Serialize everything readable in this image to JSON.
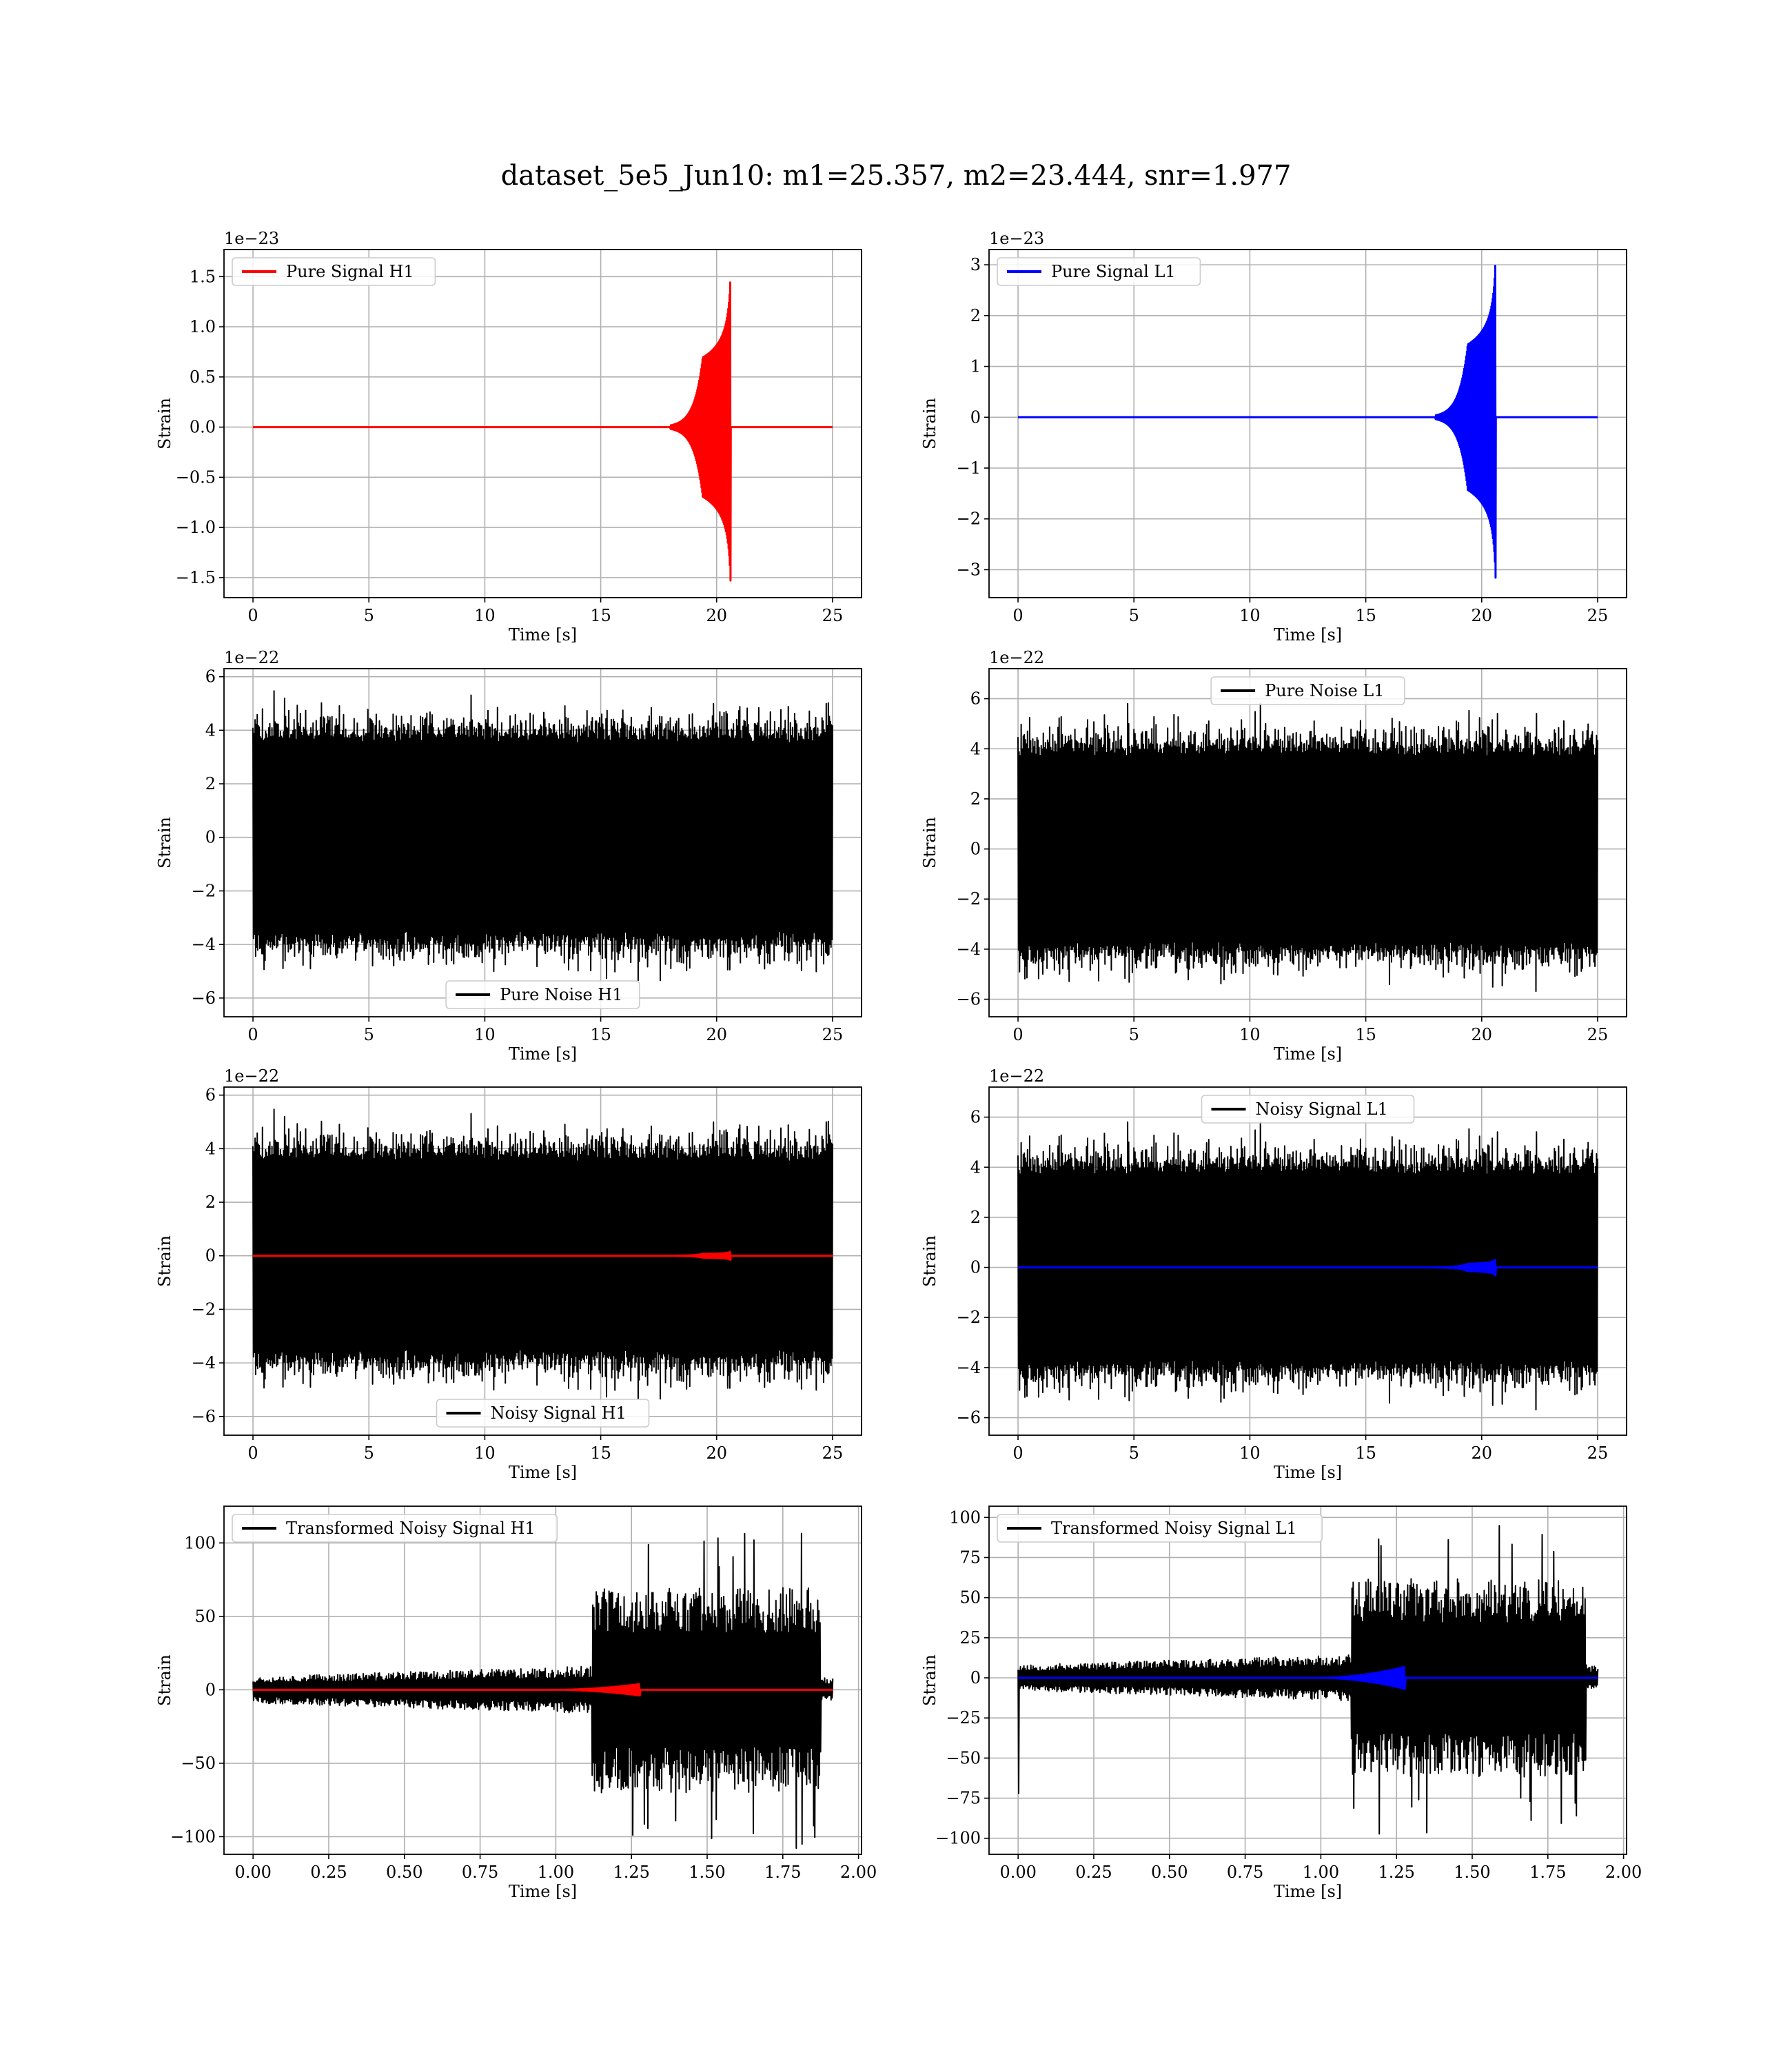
{
  "suptitle": "dataset_5e5_Jun10: m1=25.357, m2=23.444, snr=1.977",
  "colors": {
    "h1": "#ff0000",
    "l1": "#0000ff",
    "noise": "#000000",
    "grid": "#b0b0b0"
  },
  "chart_data": [
    {
      "id": "ax1",
      "type": "line",
      "xlabel": "Time [s]",
      "ylabel": "Strain",
      "offset_text": "1e−23",
      "xlim": [
        -1.25,
        26.25
      ],
      "ylim": [
        -1.7,
        1.77
      ],
      "xticks": [
        0,
        5,
        10,
        15,
        20,
        25
      ],
      "xtick_labels": [
        "0",
        "5",
        "10",
        "15",
        "20",
        "25"
      ],
      "yticks": [
        -1.5,
        -1.0,
        -0.5,
        0.0,
        0.5,
        1.0,
        1.5
      ],
      "ytick_labels": [
        "−1.5",
        "−1.0",
        "−0.5",
        "0.0",
        "0.5",
        "1.0",
        "1.5"
      ],
      "legend": {
        "label": "Pure Signal H1",
        "loc": "upper left"
      },
      "series": [
        {
          "name": "Pure Signal H1",
          "kind": "chirp",
          "color": "#ff0000",
          "t_start": 0,
          "t_end": 25,
          "t_merge": 20.6,
          "peak_pos": 1.6,
          "peak_neg": -1.5,
          "width": 3
        }
      ]
    },
    {
      "id": "ax2",
      "type": "line",
      "xlabel": "Time [s]",
      "ylabel": "Strain",
      "offset_text": "1e−23",
      "xlim": [
        -1.25,
        26.25
      ],
      "ylim": [
        -3.55,
        3.3
      ],
      "xticks": [
        0,
        5,
        10,
        15,
        20,
        25
      ],
      "xtick_labels": [
        "0",
        "5",
        "10",
        "15",
        "20",
        "25"
      ],
      "yticks": [
        -3,
        -2,
        -1,
        0,
        1,
        2,
        3
      ],
      "ytick_labels": [
        "−3",
        "−2",
        "−1",
        "0",
        "1",
        "2",
        "3"
      ],
      "legend": {
        "label": "Pure Signal L1",
        "loc": "upper left"
      },
      "series": [
        {
          "name": "Pure Signal L1",
          "kind": "chirp",
          "color": "#0000ff",
          "t_start": 0,
          "t_end": 25,
          "t_merge": 20.6,
          "peak_pos": 3.15,
          "peak_neg": -3.25,
          "width": 3
        }
      ]
    },
    {
      "id": "ax3",
      "type": "line",
      "xlabel": "Time [s]",
      "ylabel": "Strain",
      "offset_text": "1e−22",
      "xlim": [
        -1.25,
        26.25
      ],
      "ylim": [
        -6.7,
        6.3
      ],
      "xticks": [
        0,
        5,
        10,
        15,
        20,
        25
      ],
      "xtick_labels": [
        "0",
        "5",
        "10",
        "15",
        "20",
        "25"
      ],
      "yticks": [
        -6,
        -4,
        -2,
        0,
        2,
        4,
        6
      ],
      "ytick_labels": [
        "−6",
        "−4",
        "−2",
        "0",
        "2",
        "4",
        "6"
      ],
      "legend": {
        "label": "Pure Noise H1",
        "loc": "lower center"
      },
      "series": [
        {
          "name": "Pure Noise H1",
          "kind": "noise",
          "color": "#000000",
          "t_start": 0,
          "t_end": 25,
          "core": 3.8,
          "peak": 6.0,
          "seed": 11,
          "width": 2
        }
      ]
    },
    {
      "id": "ax4",
      "type": "line",
      "xlabel": "Time [s]",
      "ylabel": "Strain",
      "offset_text": "1e−22",
      "xlim": [
        -1.25,
        26.25
      ],
      "ylim": [
        -6.7,
        7.2
      ],
      "xticks": [
        0,
        5,
        10,
        15,
        20,
        25
      ],
      "xtick_labels": [
        "0",
        "5",
        "10",
        "15",
        "20",
        "25"
      ],
      "yticks": [
        -6,
        -4,
        -2,
        0,
        2,
        4,
        6
      ],
      "ytick_labels": [
        "−6",
        "−4",
        "−2",
        "0",
        "2",
        "4",
        "6"
      ],
      "legend": {
        "label": "Pure Noise L1",
        "loc": "upper center"
      },
      "series": [
        {
          "name": "Pure Noise L1",
          "kind": "noise",
          "color": "#000000",
          "t_start": 0,
          "t_end": 25,
          "core": 4.0,
          "peak": 6.2,
          "seed": 23,
          "width": 2
        }
      ]
    },
    {
      "id": "ax5",
      "type": "line",
      "xlabel": "Time [s]",
      "ylabel": "Strain",
      "offset_text": "1e−22",
      "xlim": [
        -1.25,
        26.25
      ],
      "ylim": [
        -6.7,
        6.3
      ],
      "xticks": [
        0,
        5,
        10,
        15,
        20,
        25
      ],
      "xtick_labels": [
        "0",
        "5",
        "10",
        "15",
        "20",
        "25"
      ],
      "yticks": [
        -6,
        -4,
        -2,
        0,
        2,
        4,
        6
      ],
      "ytick_labels": [
        "−6",
        "−4",
        "−2",
        "0",
        "2",
        "4",
        "6"
      ],
      "legend": {
        "label": "Noisy Signal H1",
        "loc": "lower center"
      },
      "series": [
        {
          "name": "Noisy Signal H1",
          "kind": "noise",
          "color": "#000000",
          "t_start": 0,
          "t_end": 25,
          "core": 3.8,
          "peak": 6.0,
          "seed": 11,
          "width": 2
        },
        {
          "name": "Pure Signal H1",
          "kind": "chirp",
          "color": "#ff0000",
          "t_start": 0,
          "t_end": 25,
          "t_merge": 20.6,
          "peak_pos": 0.16,
          "peak_neg": -0.15,
          "width": 3
        }
      ]
    },
    {
      "id": "ax6",
      "type": "line",
      "xlabel": "Time [s]",
      "ylabel": "Strain",
      "offset_text": "1e−22",
      "xlim": [
        -1.25,
        26.25
      ],
      "ylim": [
        -6.7,
        7.2
      ],
      "xticks": [
        0,
        5,
        10,
        15,
        20,
        25
      ],
      "xtick_labels": [
        "0",
        "5",
        "10",
        "15",
        "20",
        "25"
      ],
      "yticks": [
        -6,
        -4,
        -2,
        0,
        2,
        4,
        6
      ],
      "ytick_labels": [
        "−6",
        "−4",
        "−2",
        "0",
        "2",
        "4",
        "6"
      ],
      "legend": {
        "label": "Noisy Signal L1",
        "loc": "upper center"
      },
      "series": [
        {
          "name": "Noisy Signal L1",
          "kind": "noise",
          "color": "#000000",
          "t_start": 0,
          "t_end": 25,
          "core": 4.0,
          "peak": 6.2,
          "seed": 23,
          "width": 2
        },
        {
          "name": "Pure Signal L1",
          "kind": "chirp",
          "color": "#0000ff",
          "t_start": 0,
          "t_end": 25,
          "t_merge": 20.6,
          "peak_pos": 0.32,
          "peak_neg": -0.33,
          "width": 3
        }
      ]
    },
    {
      "id": "ax7",
      "type": "line",
      "xlabel": "Time [s]",
      "ylabel": "Strain",
      "offset_text": "",
      "xlim": [
        -0.096,
        2.01
      ],
      "ylim": [
        -112,
        125
      ],
      "xticks": [
        0.0,
        0.25,
        0.5,
        0.75,
        1.0,
        1.25,
        1.5,
        1.75,
        2.0
      ],
      "xtick_labels": [
        "0.00",
        "0.25",
        "0.50",
        "0.75",
        "1.00",
        "1.25",
        "1.50",
        "1.75",
        "2.00"
      ],
      "yticks": [
        -100,
        -50,
        0,
        50,
        100
      ],
      "ytick_labels": [
        "−100",
        "−50",
        "0",
        "50",
        "100"
      ],
      "legend": {
        "label": "Transformed Noisy Signal H1",
        "loc": "upper left"
      },
      "series": [
        {
          "name": "Transformed Noisy Signal H1",
          "kind": "whitened",
          "color": "#000000",
          "t_start": 0,
          "t_end": 1.915,
          "t_jump": 1.12,
          "t_stop": 1.875,
          "low": 9,
          "high": 70,
          "peak": 110,
          "seed": 37,
          "width": 2
        },
        {
          "name": "Pure Signal H1",
          "kind": "wchirp",
          "color": "#ff0000",
          "t_start": 0,
          "t_end": 1.915,
          "t_merge": 1.28,
          "peak": 4,
          "width": 3
        }
      ]
    },
    {
      "id": "ax8",
      "type": "line",
      "xlabel": "Time [s]",
      "ylabel": "Strain",
      "offset_text": "",
      "xlim": [
        -0.096,
        2.01
      ],
      "ylim": [
        -110,
        107
      ],
      "xticks": [
        0.0,
        0.25,
        0.5,
        0.75,
        1.0,
        1.25,
        1.5,
        1.75,
        2.0
      ],
      "xtick_labels": [
        "0.00",
        "0.25",
        "0.50",
        "0.75",
        "1.00",
        "1.25",
        "1.50",
        "1.75",
        "2.00"
      ],
      "yticks": [
        -100,
        -75,
        -50,
        -25,
        0,
        25,
        50,
        75,
        100
      ],
      "ytick_labels": [
        "−100",
        "−75",
        "−50",
        "−25",
        "0",
        "25",
        "50",
        "75",
        "100"
      ],
      "legend": {
        "label": "Transformed Noisy Signal L1",
        "loc": "upper left"
      },
      "series": [
        {
          "name": "Transformed Noisy Signal L1",
          "kind": "whitened",
          "color": "#000000",
          "t_start": 0,
          "t_end": 1.915,
          "t_jump": 1.1,
          "t_stop": 1.875,
          "low": 8,
          "high": 62,
          "peak": 98,
          "spike_start": 72,
          "seed": 53,
          "width": 2
        },
        {
          "name": "Pure Signal L1",
          "kind": "wchirp",
          "color": "#0000ff",
          "t_start": 0,
          "t_end": 1.915,
          "t_merge": 1.28,
          "peak": 7,
          "width": 3
        }
      ]
    }
  ]
}
